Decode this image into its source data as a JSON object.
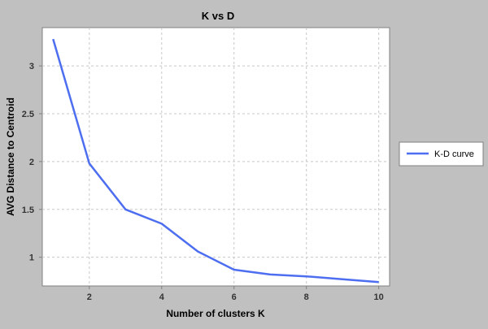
{
  "chart_data": {
    "type": "line",
    "title": "K vs D",
    "xlabel": "Number of clusters K",
    "ylabel": "AVG Distance to Centroid",
    "xlim": [
      0.7,
      10.3
    ],
    "ylim": [
      0.7,
      3.4
    ],
    "xticks": [
      2,
      4,
      6,
      8,
      10
    ],
    "yticks": [
      1,
      1.5,
      2,
      2.5,
      3
    ],
    "grid": true,
    "legend_position": "right",
    "series": [
      {
        "name": "K-D curve",
        "color": "#4d6ef0",
        "x": [
          1,
          2,
          3,
          4,
          5,
          6,
          7,
          8,
          9,
          10
        ],
        "y": [
          3.28,
          1.98,
          1.5,
          1.35,
          1.06,
          0.87,
          0.82,
          0.8,
          0.77,
          0.74
        ]
      }
    ]
  }
}
